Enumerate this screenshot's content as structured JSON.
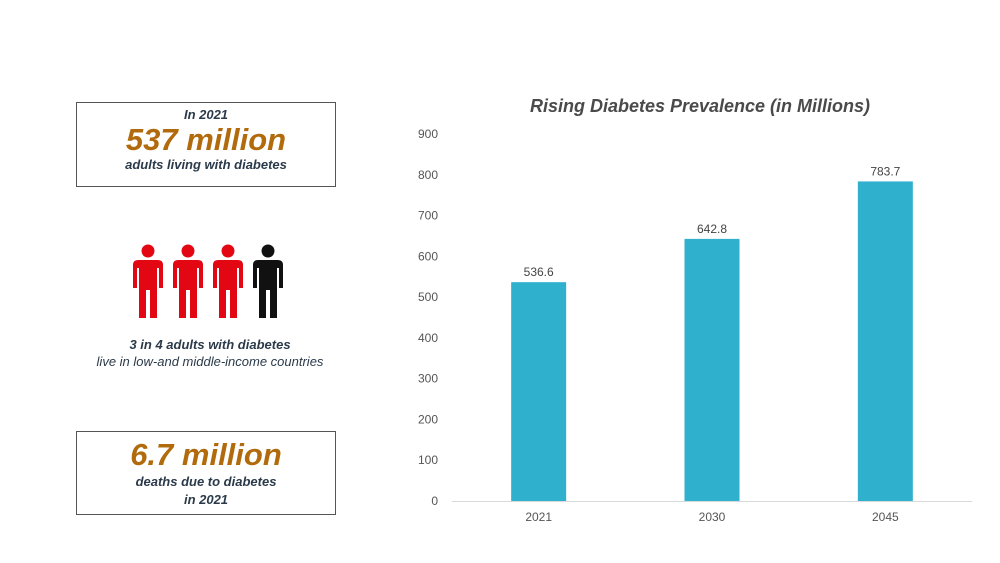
{
  "stat_top": {
    "heading": "In 2021",
    "value": "537 million",
    "caption": "adults living with diabetes"
  },
  "people_graphic": {
    "icons": [
      "person-red-icon",
      "person-red-icon",
      "person-red-icon",
      "person-black-icon"
    ],
    "colors": {
      "highlight": "#e30613",
      "other": "#111111"
    },
    "caption_line1": "3 in 4 adults with diabetes",
    "caption_line2": "live in low-and middle-income countries"
  },
  "stat_bottom": {
    "value": "6.7 million",
    "caption_line1": "deaths due to diabetes",
    "caption_line2": "in 2021"
  },
  "colors": {
    "accent": "#b26b0c",
    "bar": "#2fb0cc",
    "text_dark": "#2b3a4a"
  },
  "chart_data": {
    "type": "bar",
    "title": "Rising Diabetes Prevalence (in Millions)",
    "categories": [
      "2021",
      "2030",
      "2045"
    ],
    "values": [
      536.6,
      642.8,
      783.7
    ],
    "data_labels": [
      "536.6",
      "642.8",
      "783.7"
    ],
    "ylim": [
      0,
      900
    ],
    "yticks": [
      0,
      100,
      200,
      300,
      400,
      500,
      600,
      700,
      800,
      900
    ],
    "grid": false,
    "xlabel": "",
    "ylabel": ""
  }
}
